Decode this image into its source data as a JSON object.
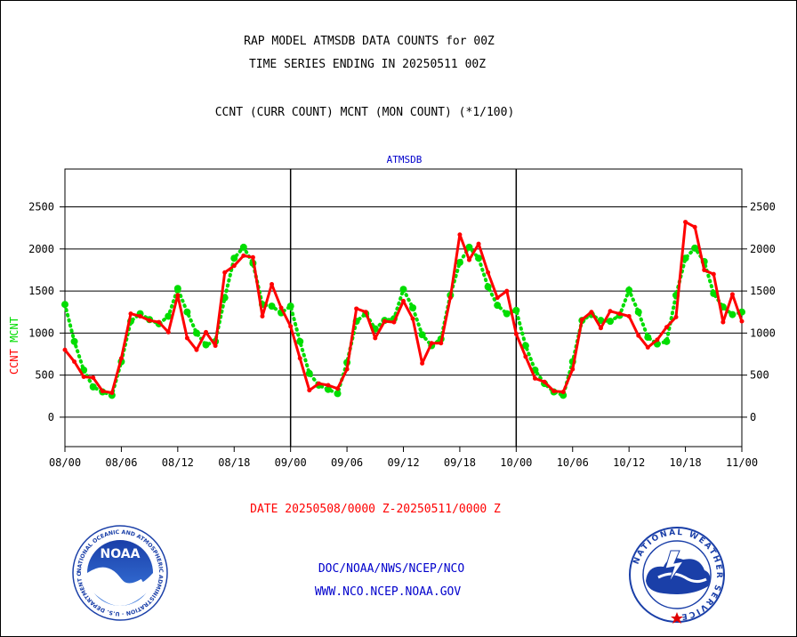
{
  "header": {
    "title_line1": "RAP MODEL ATMSDB DATA COUNTS for 00Z",
    "title_line2": "TIME SERIES ENDING IN 20250511 00Z",
    "subtitle": "CCNT (CURR COUNT) MCNT (MON COUNT) (*1/100)"
  },
  "chart_data": {
    "type": "line",
    "panel_label": "ATMSDB",
    "ylabel_ccnt": "CCNT",
    "ylabel_mcnt": "MCNT",
    "ylim": [
      -350,
      2950
    ],
    "yticks": [
      0,
      500,
      1000,
      1500,
      2000,
      2500
    ],
    "xlim": [
      0,
      72
    ],
    "xticks": [
      {
        "x": 0,
        "label": "08/00"
      },
      {
        "x": 6,
        "label": "08/06"
      },
      {
        "x": 12,
        "label": "08/12"
      },
      {
        "x": 18,
        "label": "08/18"
      },
      {
        "x": 24,
        "label": "09/00"
      },
      {
        "x": 30,
        "label": "09/06"
      },
      {
        "x": 36,
        "label": "09/12"
      },
      {
        "x": 42,
        "label": "09/18"
      },
      {
        "x": 48,
        "label": "10/00"
      },
      {
        "x": 54,
        "label": "10/06"
      },
      {
        "x": 60,
        "label": "10/12"
      },
      {
        "x": 66,
        "label": "10/18"
      },
      {
        "x": 72,
        "label": "11/00"
      }
    ],
    "day_dividers": [
      24,
      48
    ],
    "grid": true,
    "series": [
      {
        "name": "CCNT",
        "color": "#ff0000",
        "style": "solid",
        "x": [
          0,
          1,
          2,
          3,
          4,
          5,
          6,
          7,
          8,
          9,
          10,
          11,
          12,
          13,
          14,
          15,
          16,
          17,
          18,
          19,
          20,
          21,
          22,
          23,
          24,
          25,
          26,
          27,
          28,
          29,
          30,
          31,
          32,
          33,
          34,
          35,
          36,
          37,
          38,
          39,
          40,
          41,
          42,
          43,
          44,
          45,
          46,
          47,
          48,
          49,
          50,
          51,
          52,
          53,
          54,
          55,
          56,
          57,
          58,
          59,
          60,
          61,
          62,
          63,
          64,
          65,
          66,
          67,
          68,
          69,
          70,
          71,
          72
        ],
        "values": [
          800,
          660,
          480,
          470,
          310,
          290,
          700,
          1230,
          1200,
          1150,
          1130,
          1010,
          1450,
          940,
          800,
          1010,
          850,
          1720,
          1800,
          1920,
          1900,
          1200,
          1580,
          1300,
          1080,
          700,
          320,
          400,
          380,
          340,
          570,
          1290,
          1250,
          940,
          1140,
          1130,
          1380,
          1170,
          640,
          880,
          880,
          1420,
          2170,
          1870,
          2060,
          1720,
          1420,
          1500,
          990,
          720,
          460,
          420,
          310,
          300,
          570,
          1160,
          1250,
          1060,
          1260,
          1230,
          1200,
          970,
          830,
          920,
          1070,
          1190,
          2320,
          2260,
          1750,
          1700,
          1130,
          1460,
          1140
        ]
      },
      {
        "name": "MCNT",
        "color": "#00dd00",
        "style": "dotted",
        "x": [
          0,
          1,
          2,
          3,
          4,
          5,
          6,
          7,
          8,
          9,
          10,
          11,
          12,
          13,
          14,
          15,
          16,
          17,
          18,
          19,
          20,
          21,
          22,
          23,
          24,
          25,
          26,
          27,
          28,
          29,
          30,
          31,
          32,
          33,
          34,
          35,
          36,
          37,
          38,
          39,
          40,
          41,
          42,
          43,
          44,
          45,
          46,
          47,
          48,
          49,
          50,
          51,
          52,
          53,
          54,
          55,
          56,
          57,
          58,
          59,
          60,
          61,
          62,
          63,
          64,
          65,
          66,
          67,
          68,
          69,
          70,
          71,
          72
        ],
        "values": [
          1340,
          900,
          560,
          360,
          300,
          260,
          660,
          1140,
          1230,
          1160,
          1110,
          1200,
          1530,
          1250,
          1000,
          860,
          900,
          1420,
          1890,
          2020,
          1830,
          1340,
          1320,
          1240,
          1320,
          900,
          520,
          380,
          330,
          280,
          650,
          1140,
          1230,
          1050,
          1150,
          1170,
          1520,
          1300,
          980,
          850,
          930,
          1450,
          1840,
          2020,
          1890,
          1550,
          1330,
          1230,
          1270,
          850,
          560,
          400,
          300,
          260,
          660,
          1150,
          1220,
          1150,
          1140,
          1210,
          1510,
          1250,
          950,
          870,
          900,
          1450,
          1890,
          2010,
          1850,
          1470,
          1310,
          1220,
          1250
        ]
      }
    ],
    "date_range": "DATE 20250508/0000 Z-20250511/0000 Z"
  },
  "footer": {
    "line1": "DOC/NOAA/NWS/NCEP/NCO",
    "line2": "WWW.NCO.NCEP.NOAA.GOV",
    "noaa_badge": "NOAA",
    "noaa_ring_text": "NATIONAL OCEANIC AND ATMOSPHERIC ADMINISTRATION · U.S. DEPARTMENT OF COMMERCE ·",
    "nws_ring_text": "NATIONAL WEATHER SERVICE"
  },
  "colors": {
    "ccnt": "#ff0000",
    "mcnt": "#00dd00",
    "panel_label": "#0000cc",
    "footer_text": "#0000cc",
    "date_text": "#ff0000"
  }
}
